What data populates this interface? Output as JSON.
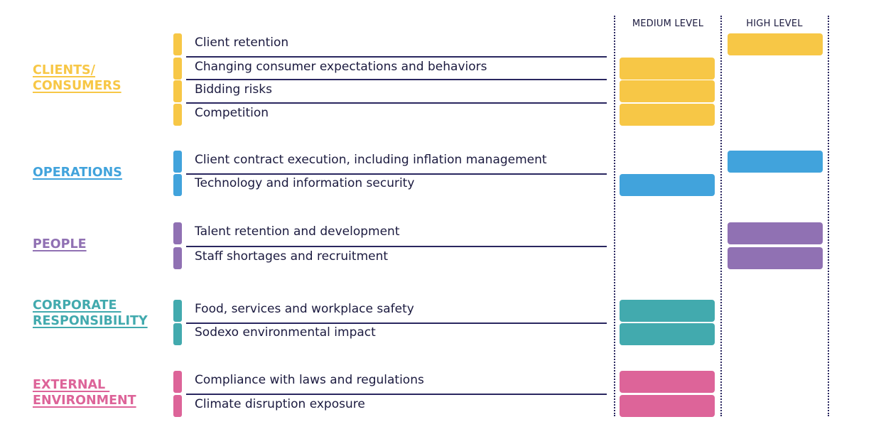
{
  "columns": {
    "medium": "MEDIUM LEVEL",
    "high": "HIGH LEVEL"
  },
  "groups": [
    {
      "label": "CLIENTS/\nCONSUMERS",
      "color": "#f7c746",
      "risks": [
        {
          "label": "Client retention",
          "level": "high"
        },
        {
          "label": "Changing consumer expectations and behaviors",
          "level": "medium"
        },
        {
          "label": "Bidding risks",
          "level": "medium"
        },
        {
          "label": "Competition",
          "level": "medium"
        }
      ]
    },
    {
      "label": "OPERATIONS",
      "color": "#41a3dc",
      "risks": [
        {
          "label": "Client contract execution, including inflation management",
          "level": "high"
        },
        {
          "label": "Technology and information security",
          "level": "medium"
        }
      ]
    },
    {
      "label": "PEOPLE",
      "color": "#9071b3",
      "risks": [
        {
          "label": "Talent retention and development",
          "level": "high"
        },
        {
          "label": "Staff shortages and recruitment",
          "level": "high"
        }
      ]
    },
    {
      "label": "CORPORATE \nRESPONSIBILITY",
      "color": "#42aaae",
      "risks": [
        {
          "label": "Food, services and workplace safety",
          "level": "medium"
        },
        {
          "label": "Sodexo environmental impact",
          "level": "medium"
        }
      ]
    },
    {
      "label": "EXTERNAL \nENVIRONMENT",
      "color": "#dd6499",
      "risks": [
        {
          "label": "Compliance with laws and regulations",
          "level": "medium"
        },
        {
          "label": "Climate disruption exposure",
          "level": "medium"
        }
      ]
    }
  ]
}
